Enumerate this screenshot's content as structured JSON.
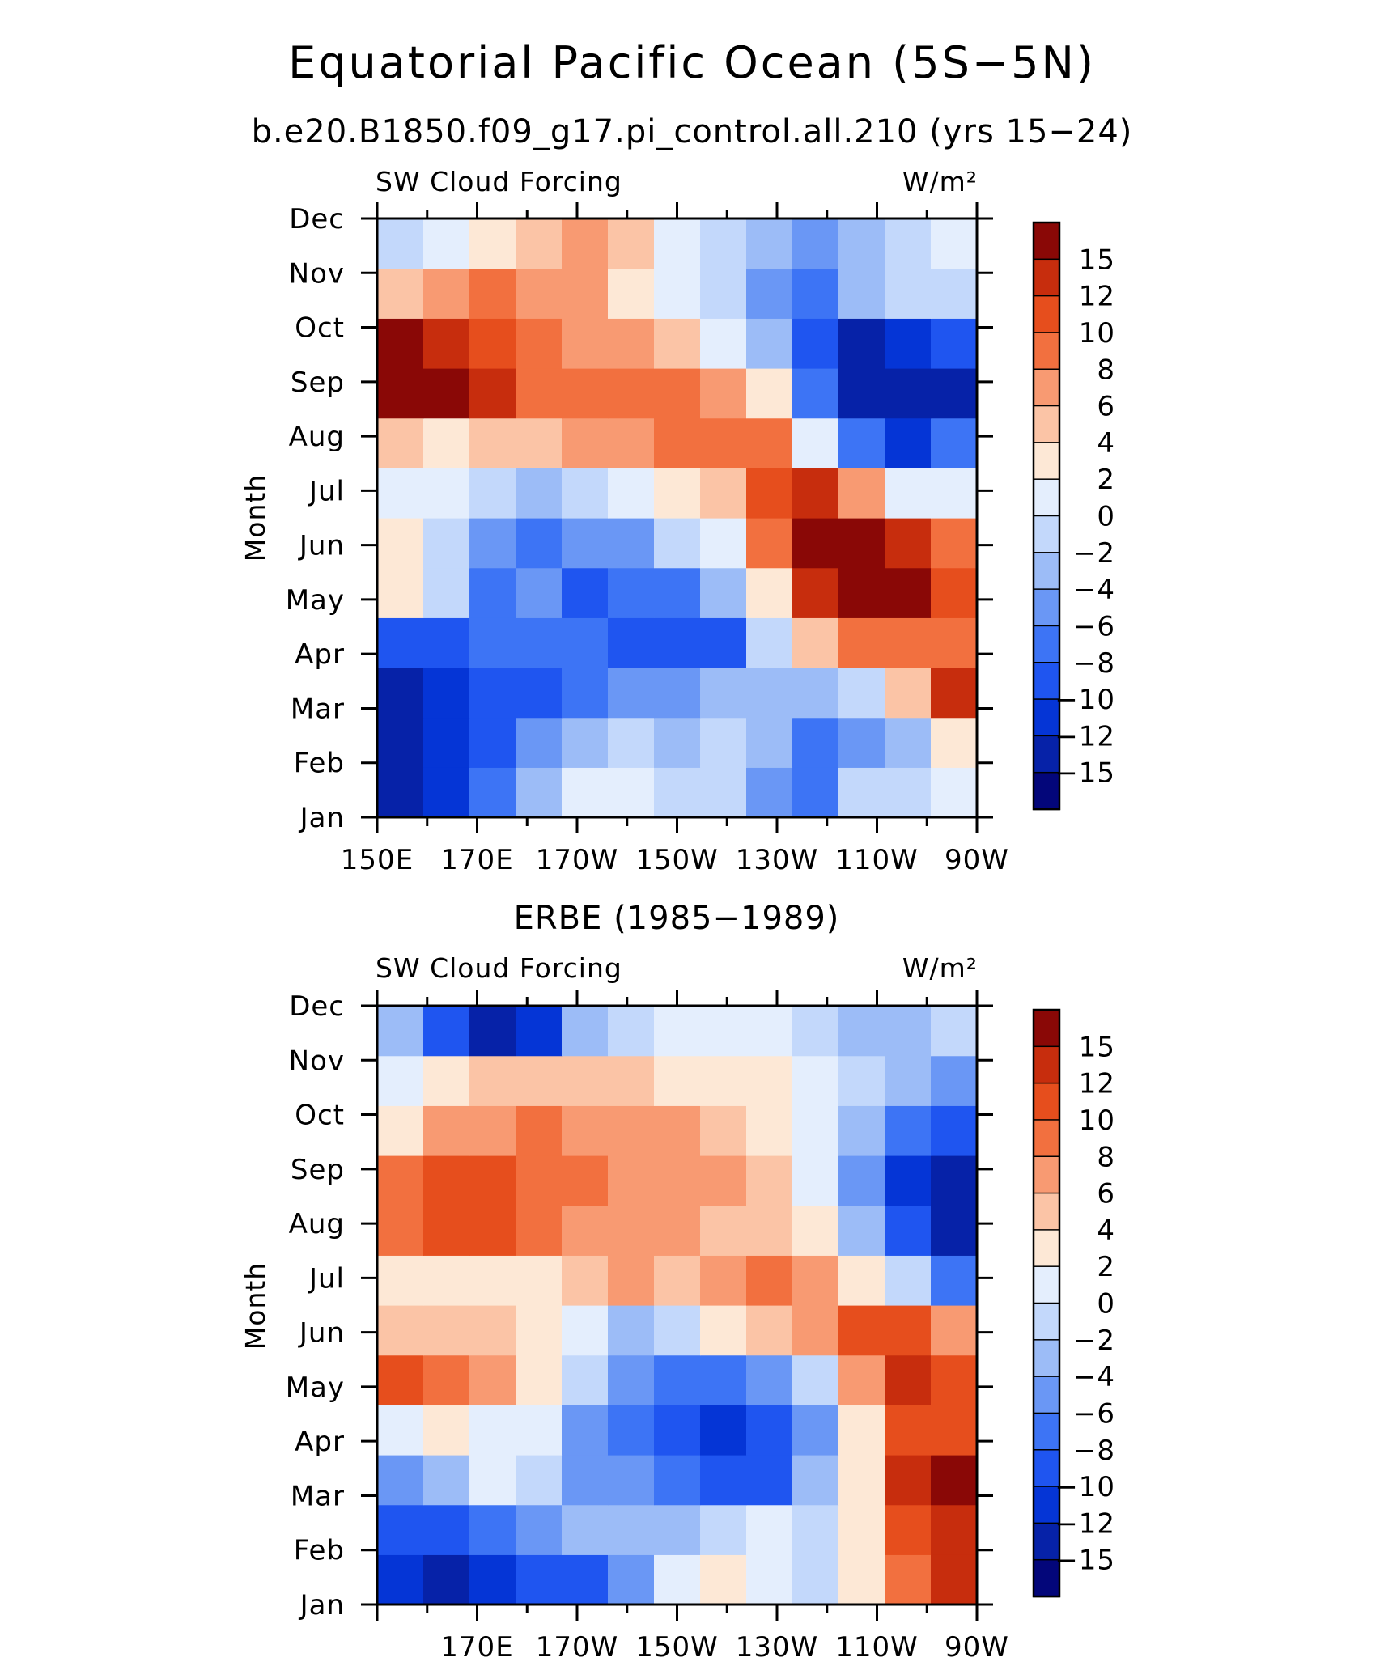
{
  "figure": {
    "title": "Equatorial Pacific Ocean (5S−5N)"
  },
  "chart_data": [
    {
      "type": "heatmap",
      "subtitle": "b.e20.B1850.f09_g17.pi_control.all.210 (yrs 15−24)",
      "left_label": "SW Cloud Forcing",
      "right_label": "W/m²",
      "ylabel": "Month",
      "x_tick_labels": [
        "150E",
        "170E",
        "170W",
        "150W",
        "130W",
        "110W",
        "90W"
      ],
      "y_tick_labels": [
        "Jan",
        "Feb",
        "Mar",
        "Apr",
        "May",
        "Jun",
        "Jul",
        "Aug",
        "Sep",
        "Oct",
        "Nov",
        "Dec"
      ],
      "xlim": [
        "150E",
        "90W"
      ],
      "x": [
        "150E",
        "160E",
        "170E",
        "180",
        "170W",
        "160W",
        "150W",
        "140W",
        "130W",
        "120W",
        "110W",
        "100W",
        "90W"
      ],
      "months": [
        "Jan",
        "Feb",
        "Mar",
        "Apr",
        "May",
        "Jun",
        "Jul",
        "Aug",
        "Sep",
        "Oct",
        "Nov",
        "Dec"
      ],
      "values": [
        [
          -15,
          -11,
          -7,
          -3,
          1,
          1,
          -1,
          -1,
          -5,
          -7,
          -2,
          -1,
          1
        ],
        [
          -13,
          -12,
          -9,
          -5,
          -3,
          -2,
          -3,
          -2,
          -3,
          -8,
          -6,
          -3,
          3
        ],
        [
          -13,
          -12,
          -9,
          -9,
          -7,
          -6,
          -5,
          -4,
          -4,
          -3,
          -2,
          4,
          12
        ],
        [
          -9,
          -9,
          -8,
          -8,
          -8,
          -9,
          -10,
          -9,
          -2,
          4,
          8,
          9,
          9
        ],
        [
          2,
          -2,
          -8,
          -6,
          -9,
          -7,
          -7,
          -3,
          3,
          12,
          15,
          15,
          10
        ],
        [
          3,
          -2,
          -6,
          -7,
          -6,
          -5,
          -2,
          1,
          8,
          15,
          16,
          14,
          9
        ],
        [
          1,
          0,
          -2,
          -3,
          -2,
          0,
          2,
          5,
          11,
          13,
          6,
          1,
          1
        ],
        [
          4,
          3,
          4,
          5,
          6,
          7,
          8,
          9,
          8,
          1,
          -8,
          -12,
          -8
        ],
        [
          17,
          15,
          12,
          9,
          8,
          8,
          8,
          6,
          2,
          -7,
          -15,
          -14,
          -13
        ],
        [
          16,
          14,
          11,
          9,
          7,
          6,
          4,
          1,
          -3,
          -10,
          -13,
          -12,
          -9
        ],
        [
          5,
          7,
          8,
          7,
          6,
          3,
          0,
          -2,
          -5,
          -7,
          -4,
          -2,
          -1
        ],
        [
          -2,
          1,
          3,
          5,
          6,
          4,
          1,
          -1,
          -4,
          -5,
          -3,
          -2,
          1
        ]
      ]
    },
    {
      "type": "heatmap",
      "subtitle": "ERBE (1985−1989)",
      "left_label": "SW Cloud Forcing",
      "right_label": "W/m²",
      "ylabel": "Month",
      "x_tick_labels": [
        "170E",
        "170W",
        "150W",
        "130W",
        "110W",
        "90W"
      ],
      "y_tick_labels": [
        "Jan",
        "Feb",
        "Mar",
        "Apr",
        "May",
        "Jun",
        "Jul",
        "Aug",
        "Sep",
        "Oct",
        "Nov",
        "Dec"
      ],
      "xlim": [
        "150E",
        "90W"
      ],
      "x": [
        "150E",
        "160E",
        "170E",
        "180",
        "170W",
        "160W",
        "150W",
        "140W",
        "130W",
        "120W",
        "110W",
        "100W",
        "90W"
      ],
      "months": [
        "Jan",
        "Feb",
        "Mar",
        "Apr",
        "May",
        "Jun",
        "Jul",
        "Aug",
        "Sep",
        "Oct",
        "Nov",
        "Dec"
      ],
      "values": [
        [
          -12,
          -13,
          -12,
          -9,
          -10,
          -5,
          1,
          3,
          1,
          -1,
          2,
          9,
          13
        ],
        [
          -10,
          -10,
          -8,
          -5,
          -4,
          -3,
          -3,
          -1,
          0,
          -1,
          2,
          10,
          14
        ],
        [
          -5,
          -4,
          0,
          -2,
          -5,
          -6,
          -8,
          -10,
          -9,
          -3,
          3,
          12,
          15
        ],
        [
          0,
          2,
          1,
          0,
          -6,
          -8,
          -10,
          -11,
          -10,
          -6,
          2,
          10,
          11
        ],
        [
          10,
          8,
          6,
          2,
          -2,
          -6,
          -8,
          -8,
          -6,
          -2,
          6,
          12,
          11
        ],
        [
          5,
          5,
          4,
          2,
          0,
          -3,
          -2,
          2,
          4,
          7,
          10,
          11,
          6
        ],
        [
          3,
          3,
          2,
          3,
          5,
          6,
          5,
          6,
          8,
          6,
          3,
          -2,
          -8
        ],
        [
          9,
          11,
          10,
          8,
          7,
          7,
          6,
          5,
          5,
          2,
          -4,
          -10,
          -13
        ],
        [
          8,
          11,
          10,
          9,
          8,
          7,
          6,
          6,
          4,
          1,
          -6,
          -12,
          -14
        ],
        [
          3,
          6,
          6,
          8,
          7,
          6,
          6,
          5,
          3,
          1,
          -3,
          -8,
          -10
        ],
        [
          0,
          2,
          4,
          5,
          5,
          4,
          3,
          3,
          2,
          1,
          -1,
          -4,
          -6
        ],
        [
          -3,
          -9,
          -13,
          -12,
          -4,
          -1,
          0,
          1,
          0,
          -2,
          -3,
          -4,
          -1
        ]
      ]
    }
  ],
  "colorbar": {
    "tick_labels": [
      "15",
      "12",
      "10",
      "8",
      "6",
      "4",
      "2",
      "0",
      "−2",
      "−4",
      "−6",
      "−8",
      "−10",
      "−12",
      "−15"
    ],
    "levels": [
      -15,
      -12,
      -10,
      -8,
      -6,
      -4,
      -2,
      0,
      2,
      4,
      6,
      8,
      10,
      12,
      15
    ],
    "colors": [
      "#03067a",
      "#0622a8",
      "#0535d6",
      "#1f55f0",
      "#3d74f5",
      "#6a97f5",
      "#9cbcf7",
      "#c3d8fb",
      "#e4eefd",
      "#fde8d6",
      "#fbc4a6",
      "#f89a72",
      "#f2703f",
      "#e64e1d",
      "#c72d0d",
      "#8a0806"
    ]
  }
}
